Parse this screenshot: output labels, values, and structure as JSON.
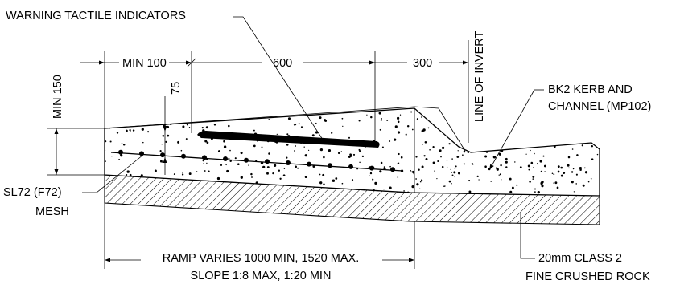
{
  "labels": {
    "warning_tactile": "WARNING TACTILE INDICATORS",
    "min_100": "MIN 100",
    "dim_600": "600",
    "dim_300": "300",
    "line_of_invert": "LINE OF INVERT",
    "min_150": "MIN 150",
    "dim_75": "75",
    "kerb_line1": "BK2 KERB AND",
    "kerb_line2": "CHANNEL (MP102)",
    "mesh_line1": "SL72 (F72)",
    "mesh_line2": "MESH",
    "ramp_line1": "RAMP VARIES 1000 MIN, 1520 MAX.",
    "ramp_line2": "SLOPE 1:8 MAX, 1:20 MIN",
    "rock_line1": "20mm CLASS 2",
    "rock_line2": "FINE CRUSHED ROCK"
  }
}
